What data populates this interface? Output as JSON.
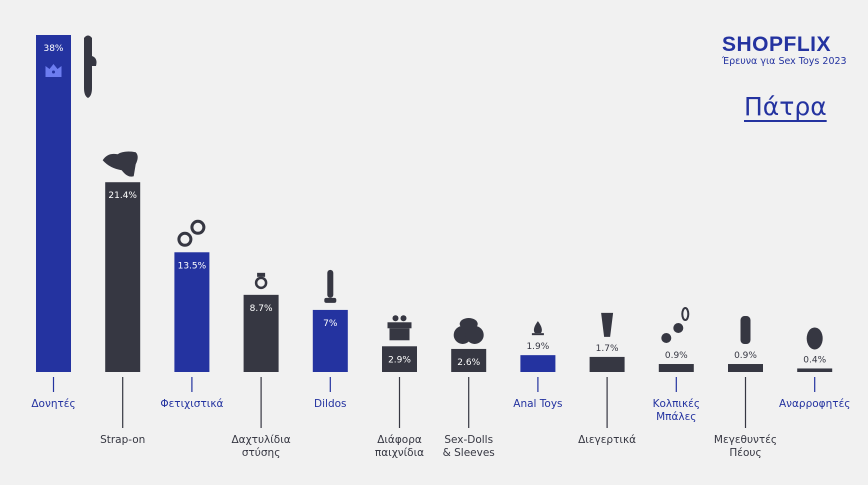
{
  "header": {
    "brand": "SHOPFLIX",
    "subtitle": "Έρευνα για Sex Toys  2023",
    "city": "Πάτρα"
  },
  "colors": {
    "blue": "#2433a0",
    "dark": "#363742",
    "crown": "#6d7df0"
  },
  "chart_data": {
    "type": "bar",
    "categories": [
      "Δονητές",
      "Strap-on",
      "Φετιχιστικά",
      "Δαχτυλίδια στύσης",
      "Dildos",
      "Διάφορα παιχνίδια",
      "Sex-Dolls & Sleeves",
      "Anal Toys",
      "Διεγερτικά",
      "Κολπικές Μπάλες",
      "Μεγεθυντές Πέους",
      "Αναρροφητές"
    ],
    "label_lines": [
      [
        "Δονητές"
      ],
      [
        "Strap-on"
      ],
      [
        "Φετιχιστικά"
      ],
      [
        "Δαχτυλίδια",
        "στύσης"
      ],
      [
        "Dildos"
      ],
      [
        "Διάφορα",
        "παιχνίδια"
      ],
      [
        "Sex-Dolls",
        "& Sleeves"
      ],
      [
        "Anal Toys"
      ],
      [
        "Διεγερτικά"
      ],
      [
        "Κολπικές",
        "Μπάλες"
      ],
      [
        "Μεγεθυντές",
        "Πέους"
      ],
      [
        "Αναρροφητές"
      ]
    ],
    "values": [
      38,
      21.4,
      13.5,
      8.7,
      7,
      2.9,
      2.6,
      1.9,
      1.7,
      0.9,
      0.9,
      0.4
    ],
    "value_labels": [
      "38%",
      "21.4%",
      "13.5%",
      "8.7%",
      "7%",
      "2.9%",
      "2.6%",
      "1.9%",
      "1.7%",
      "0.9%",
      "0.9%",
      "0.4%"
    ],
    "bar_colors": [
      "blue",
      "dark",
      "blue",
      "dark",
      "blue",
      "dark",
      "dark",
      "blue",
      "dark",
      "dark",
      "dark",
      "dark"
    ],
    "label_colors": [
      "blue",
      "dark",
      "blue",
      "dark",
      "blue",
      "dark",
      "dark",
      "blue",
      "dark",
      "blue",
      "dark",
      "blue"
    ],
    "icons": [
      "vibrator-icon",
      "strap-on-icon",
      "handcuffs-icon",
      "ring-icon",
      "dildo-icon",
      "gift-icon",
      "sex-doll-icon",
      "anal-plug-icon",
      "lubricant-icon",
      "vaginal-balls-icon",
      "penis-extender-icon",
      "suction-toy-icon"
    ],
    "highlight_icon": "crown-icon",
    "ylim": [
      0,
      38
    ]
  }
}
